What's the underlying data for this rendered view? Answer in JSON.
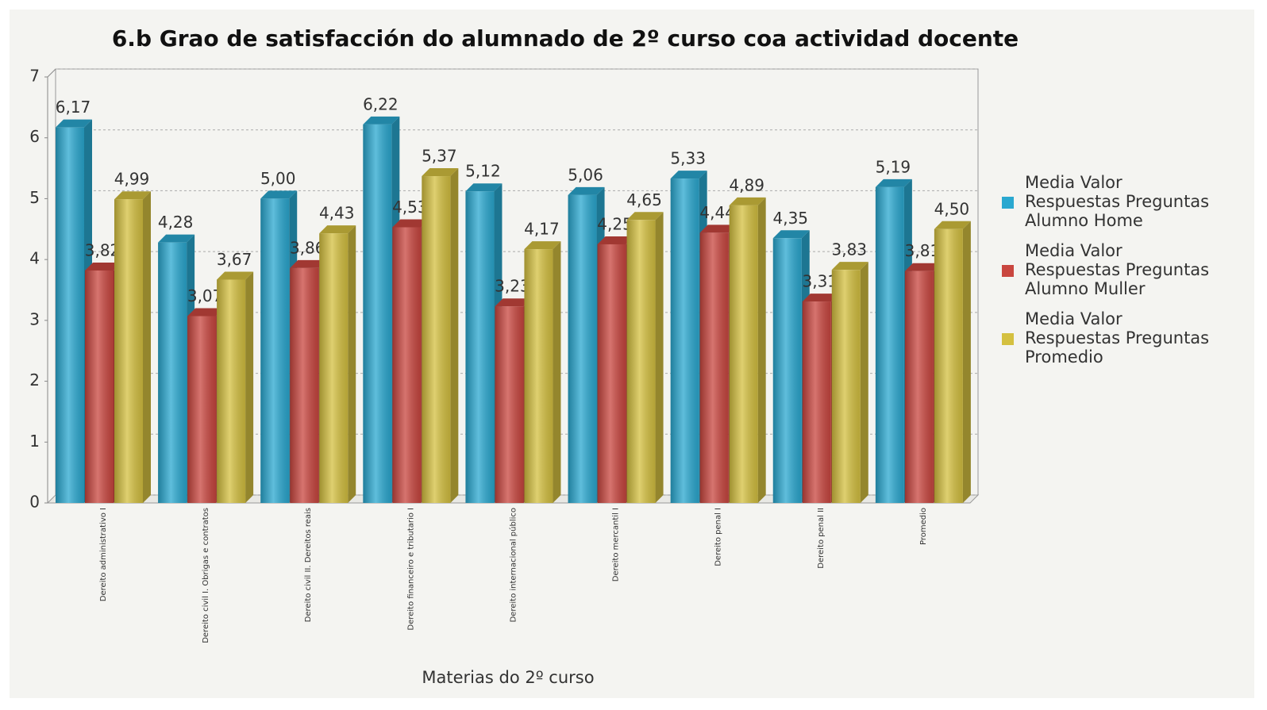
{
  "chart_data": {
    "type": "bar3d",
    "title": "6.b Grao de satisfacción do alumnado de 2º curso coa actividad docente",
    "x_label": "Materias do 2º curso",
    "categories": [
      "Dereito administrativo I",
      "Dereito civil I. Obrigas e contratos",
      "Dereito civil II. Dereitos reais",
      "Dereito financeiro e tributario I",
      "Dereito internacional público",
      "Dereito mercantil I",
      "Dereito penal I",
      "Dereito penal II",
      "Promedio"
    ],
    "series": [
      {
        "name": "Media Valor Respuestas Preguntas Alumno Home",
        "color": "#2aa8d0",
        "values": [
          6.17,
          4.28,
          5.0,
          6.22,
          5.12,
          5.06,
          5.33,
          4.35,
          5.19
        ],
        "value_labels": [
          "6,17",
          "4,28",
          "5,00",
          "6,22",
          "5,12",
          "5,06",
          "5,33",
          "4,35",
          "5,19"
        ]
      },
      {
        "name": "Media Valor Respuestas Preguntas Alumno Muller",
        "color": "#c9463f",
        "values": [
          3.82,
          3.07,
          3.86,
          4.53,
          3.23,
          4.25,
          4.44,
          3.31,
          3.81
        ],
        "value_labels": [
          "3,82",
          "3,07",
          "3,86",
          "4,53",
          "3,23",
          "4,25",
          "4,44",
          "3,31",
          "3,81"
        ]
      },
      {
        "name": "Media Valor Respuestas Preguntas Promedio",
        "color": "#d4c040",
        "values": [
          4.99,
          3.67,
          4.43,
          5.37,
          4.17,
          4.65,
          4.89,
          3.83,
          4.5
        ],
        "value_labels": [
          "4,99",
          "3,67",
          "4,43",
          "5,37",
          "4,17",
          "4,65",
          "4,89",
          "3,83",
          "4,50"
        ]
      }
    ],
    "ylim": [
      0,
      7
    ],
    "yticks": [
      0,
      1,
      2,
      3,
      4,
      5,
      6,
      7
    ],
    "grid": true,
    "legend": "right"
  }
}
